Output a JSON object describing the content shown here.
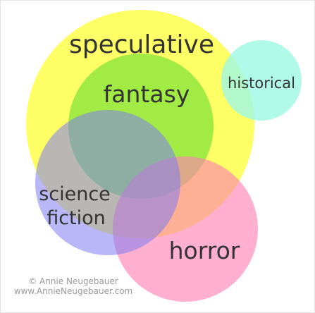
{
  "diagram": {
    "sets": {
      "speculative": {
        "label": "speculative",
        "color": "#ffff44"
      },
      "fantasy": {
        "label": "fantasy",
        "color": "#7be236"
      },
      "historical": {
        "label": "historical",
        "color": "#9ef7e3"
      },
      "science_fiction": {
        "label_line1": "science",
        "label_line2": "fiction",
        "color": "#7f7cf2"
      },
      "horror": {
        "label": "horror",
        "color": "#ff7fb0"
      }
    }
  },
  "credit": {
    "line1": "© Annie Neugebauer",
    "line2": "www.AnnieNeugebauer.com"
  }
}
